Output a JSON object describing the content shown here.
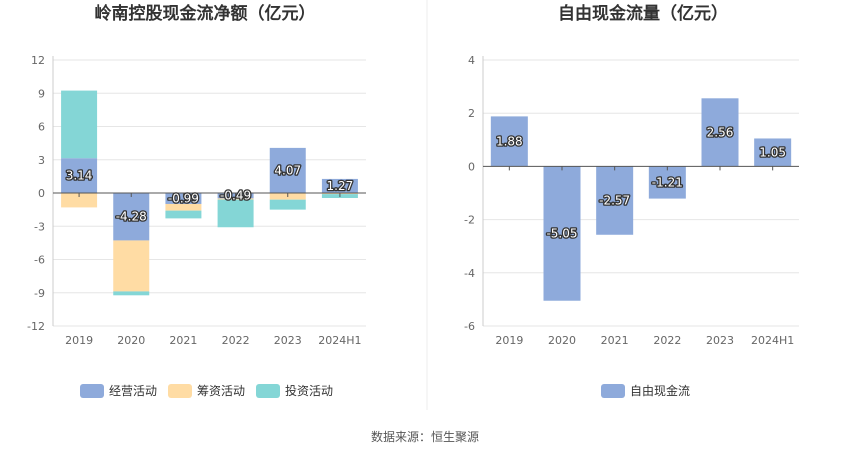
{
  "footer": {
    "source_label": "数据来源：恒生聚源"
  },
  "colors": {
    "operating": "#8eaadb",
    "financing": "#ffdca4",
    "investing": "#84d6d6",
    "free_cash_flow": "#8eaadb",
    "grid": "#e6e6e6",
    "axis": "#555555",
    "tick_text": "#666666",
    "title": "#333333"
  },
  "chart_data": [
    {
      "type": "bar",
      "stacked": true,
      "title": "岭南控股现金流净额（亿元）",
      "categories": [
        "2019",
        "2020",
        "2021",
        "2022",
        "2023",
        "2024H1"
      ],
      "ylim": [
        -12,
        12
      ],
      "yticks": [
        12,
        9,
        6,
        3,
        0,
        -3,
        -6,
        -9,
        -12
      ],
      "grid": true,
      "legend_position": "bottom",
      "series": [
        {
          "name": "经营活动",
          "color_key": "operating",
          "values": [
            3.14,
            -4.28,
            -0.99,
            -0.49,
            4.07,
            1.27
          ],
          "labels": [
            "3.14",
            "-4.28",
            "-0.99",
            "-0.49",
            "4.07",
            "1.27"
          ]
        },
        {
          "name": "筹资活动",
          "color_key": "financing",
          "values": [
            -1.3,
            -4.6,
            -0.6,
            -0.1,
            -0.6,
            -0.1
          ]
        },
        {
          "name": "投资活动",
          "color_key": "investing",
          "values": [
            6.1,
            -0.35,
            -0.7,
            -2.5,
            -0.9,
            -0.35
          ]
        }
      ]
    },
    {
      "type": "bar",
      "title": "自由现金流量（亿元）",
      "categories": [
        "2019",
        "2020",
        "2021",
        "2022",
        "2023",
        "2024H1"
      ],
      "ylim": [
        -6,
        4
      ],
      "yticks": [
        4,
        2,
        0,
        -2,
        -4,
        -6
      ],
      "grid": true,
      "legend_position": "bottom",
      "series": [
        {
          "name": "自由现金流",
          "color_key": "free_cash_flow",
          "values": [
            1.88,
            -5.05,
            -2.57,
            -1.21,
            2.56,
            1.05
          ],
          "labels": [
            "1.88",
            "-5.05",
            "-2.57",
            "-1.21",
            "2.56",
            "1.05"
          ]
        }
      ]
    }
  ]
}
